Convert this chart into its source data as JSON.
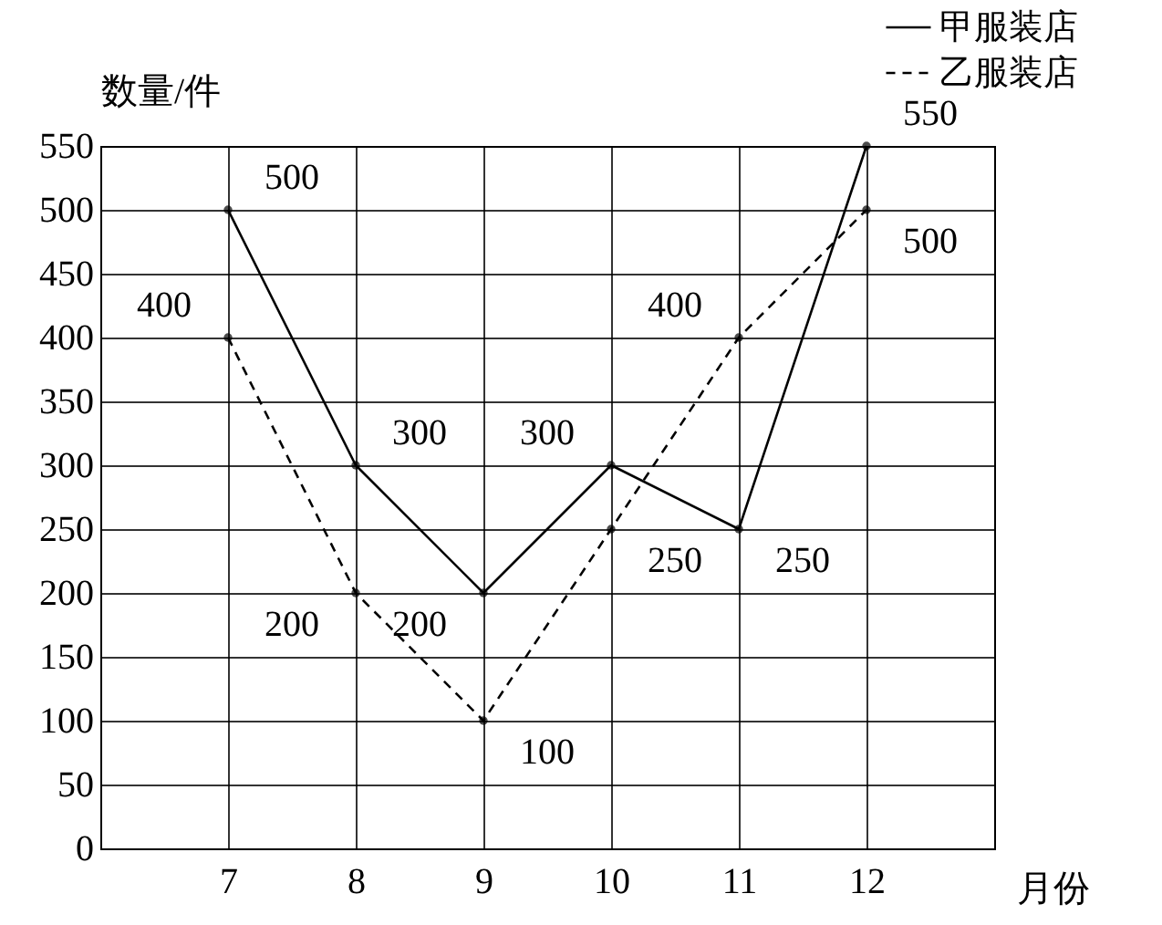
{
  "chart_data": {
    "type": "line",
    "xlabel": "月份",
    "ylabel": "数量/件",
    "x": [
      7,
      8,
      9,
      10,
      11,
      12
    ],
    "series": [
      {
        "name": "甲服装店",
        "color": "#000000",
        "line_style": "solid",
        "values": [
          500,
          300,
          200,
          300,
          250,
          550
        ]
      },
      {
        "name": "乙服装店",
        "color": "#000000",
        "line_style": "dashed",
        "values": [
          400,
          200,
          100,
          250,
          400,
          500
        ]
      }
    ],
    "xlim": [
      6,
      13
    ],
    "xticks": [
      7,
      8,
      9,
      10,
      11,
      12
    ],
    "ylim": [
      0,
      550
    ],
    "yticks": [
      0,
      50,
      100,
      150,
      200,
      250,
      300,
      350,
      400,
      450,
      500,
      550
    ],
    "grid": true,
    "legend": "top right",
    "marker": "circle",
    "data_labels": true
  }
}
